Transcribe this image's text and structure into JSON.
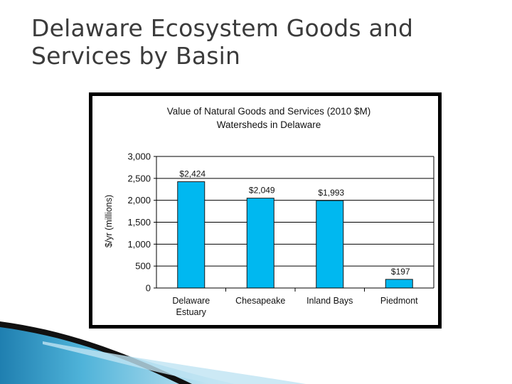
{
  "slide": {
    "title": "Delaware Ecosystem Goods and Services by Basin"
  },
  "colors": {
    "bar_fill": "#00b8f0",
    "bar_stroke": "#1a1a1a",
    "frame": "#000000",
    "title_text": "#3b3b3b",
    "swoosh_blue": "#1f7fb0"
  },
  "chart_data": {
    "type": "bar",
    "title": "Value of Natural Goods and Services (2010 $M)",
    "subtitle": "Watersheds in Delaware",
    "xlabel": "",
    "ylabel": "$/yr (millions)",
    "ylim": [
      0,
      3000
    ],
    "yticks": [
      0,
      500,
      1000,
      1500,
      2000,
      2500,
      3000
    ],
    "ytick_labels": [
      "0",
      "500",
      "1,000",
      "1,500",
      "2,000",
      "2,500",
      "3,000"
    ],
    "categories": [
      [
        "Delaware",
        "Estuary"
      ],
      [
        "Chesapeake"
      ],
      [
        "Inland Bays"
      ],
      [
        "Piedmont"
      ]
    ],
    "values": [
      2424,
      2049,
      1993,
      197
    ],
    "data_labels": [
      "$2,424",
      "$2,049",
      "$1,993",
      "$197"
    ],
    "grid": true,
    "legend": "none"
  }
}
